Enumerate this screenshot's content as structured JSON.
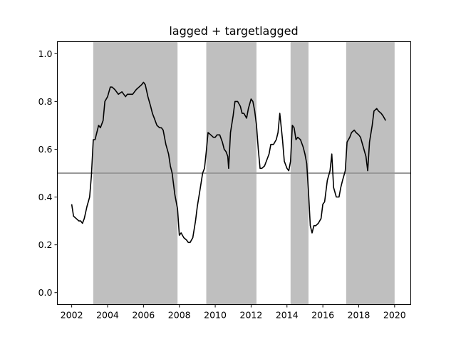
{
  "chart_data": {
    "type": "line",
    "title": "lagged + targetlagged",
    "xlabel": "",
    "ylabel": "",
    "xlim": [
      2001.2,
      2020.9
    ],
    "ylim": [
      -0.05,
      1.05
    ],
    "x_ticks": [
      2002,
      2004,
      2006,
      2008,
      2010,
      2012,
      2014,
      2016,
      2018,
      2020
    ],
    "y_ticks": [
      0.0,
      0.2,
      0.4,
      0.6,
      0.8,
      1.0
    ],
    "y_tick_labels": [
      "0.0",
      "0.2",
      "0.4",
      "0.6",
      "0.8",
      "1.0"
    ],
    "grid": false,
    "reference_line": {
      "y": 0.5,
      "color": "#999999"
    },
    "shaded_regions": [
      {
        "x0": 2003.2,
        "x1": 2007.9
      },
      {
        "x0": 2009.5,
        "x1": 2012.3
      },
      {
        "x0": 2014.2,
        "x1": 2015.2
      },
      {
        "x0": 2017.3,
        "x1": 2020.0
      }
    ],
    "shade_color": "#bfbfbf",
    "series": [
      {
        "color": "#000000",
        "x": [
          2002.0,
          2002.1,
          2002.25,
          2002.4,
          2002.5,
          2002.6,
          2002.7,
          2002.85,
          2003.0,
          2003.1,
          2003.2,
          2003.3,
          2003.4,
          2003.5,
          2003.6,
          2003.75,
          2003.85,
          2004.0,
          2004.15,
          2004.25,
          2004.4,
          2004.5,
          2004.6,
          2004.8,
          2004.9,
          2005.0,
          2005.1,
          2005.25,
          2005.4,
          2005.5,
          2005.6,
          2005.75,
          2005.9,
          2006.0,
          2006.1,
          2006.25,
          2006.4,
          2006.5,
          2006.6,
          2006.75,
          2006.9,
          2007.0,
          2007.1,
          2007.25,
          2007.4,
          2007.5,
          2007.6,
          2007.75,
          2007.9,
          2008.0,
          2008.1,
          2008.25,
          2008.4,
          2008.5,
          2008.6,
          2008.75,
          2008.9,
          2009.0,
          2009.15,
          2009.3,
          2009.4,
          2009.5,
          2009.6,
          2009.75,
          2009.9,
          2010.0,
          2010.1,
          2010.25,
          2010.4,
          2010.5,
          2010.6,
          2010.7,
          2010.75,
          2010.85,
          2011.0,
          2011.1,
          2011.25,
          2011.4,
          2011.5,
          2011.6,
          2011.75,
          2011.85,
          2012.0,
          2012.1,
          2012.2,
          2012.3,
          2012.4,
          2012.5,
          2012.6,
          2012.75,
          2012.9,
          2013.0,
          2013.1,
          2013.25,
          2013.4,
          2013.5,
          2013.6,
          2013.75,
          2013.85,
          2014.0,
          2014.1,
          2014.2,
          2014.3,
          2014.4,
          2014.5,
          2014.6,
          2014.75,
          2014.9,
          2015.0,
          2015.1,
          2015.2,
          2015.3,
          2015.4,
          2015.5,
          2015.6,
          2015.75,
          2015.9,
          2016.0,
          2016.1,
          2016.25,
          2016.4,
          2016.5,
          2016.6,
          2016.75,
          2016.9,
          2017.0,
          2017.1,
          2017.25,
          2017.35,
          2017.5,
          2017.6,
          2017.75,
          2017.85,
          2018.0,
          2018.1,
          2018.25,
          2018.4,
          2018.5,
          2018.6,
          2018.75,
          2018.85,
          2019.0,
          2019.1,
          2019.25,
          2019.35,
          2019.5
        ],
        "y": [
          0.37,
          0.32,
          0.31,
          0.3,
          0.3,
          0.29,
          0.31,
          0.36,
          0.4,
          0.49,
          0.64,
          0.64,
          0.67,
          0.7,
          0.69,
          0.72,
          0.8,
          0.82,
          0.86,
          0.86,
          0.85,
          0.84,
          0.83,
          0.84,
          0.83,
          0.82,
          0.83,
          0.83,
          0.83,
          0.84,
          0.85,
          0.86,
          0.87,
          0.88,
          0.87,
          0.82,
          0.78,
          0.75,
          0.73,
          0.7,
          0.69,
          0.69,
          0.68,
          0.62,
          0.58,
          0.53,
          0.5,
          0.41,
          0.35,
          0.24,
          0.25,
          0.23,
          0.22,
          0.21,
          0.21,
          0.23,
          0.3,
          0.36,
          0.43,
          0.5,
          0.52,
          0.59,
          0.67,
          0.66,
          0.65,
          0.65,
          0.66,
          0.66,
          0.63,
          0.6,
          0.59,
          0.57,
          0.52,
          0.67,
          0.74,
          0.8,
          0.8,
          0.78,
          0.75,
          0.75,
          0.73,
          0.77,
          0.81,
          0.8,
          0.76,
          0.7,
          0.6,
          0.52,
          0.52,
          0.53,
          0.56,
          0.58,
          0.62,
          0.62,
          0.64,
          0.67,
          0.75,
          0.64,
          0.55,
          0.52,
          0.51,
          0.55,
          0.7,
          0.69,
          0.64,
          0.65,
          0.64,
          0.61,
          0.58,
          0.54,
          0.42,
          0.28,
          0.25,
          0.28,
          0.28,
          0.29,
          0.31,
          0.37,
          0.38,
          0.47,
          0.51,
          0.58,
          0.44,
          0.4,
          0.4,
          0.44,
          0.47,
          0.51,
          0.63,
          0.65,
          0.67,
          0.68,
          0.67,
          0.66,
          0.65,
          0.61,
          0.57,
          0.51,
          0.63,
          0.7,
          0.76,
          0.77,
          0.76,
          0.75,
          0.74,
          0.72
        ]
      }
    ]
  }
}
